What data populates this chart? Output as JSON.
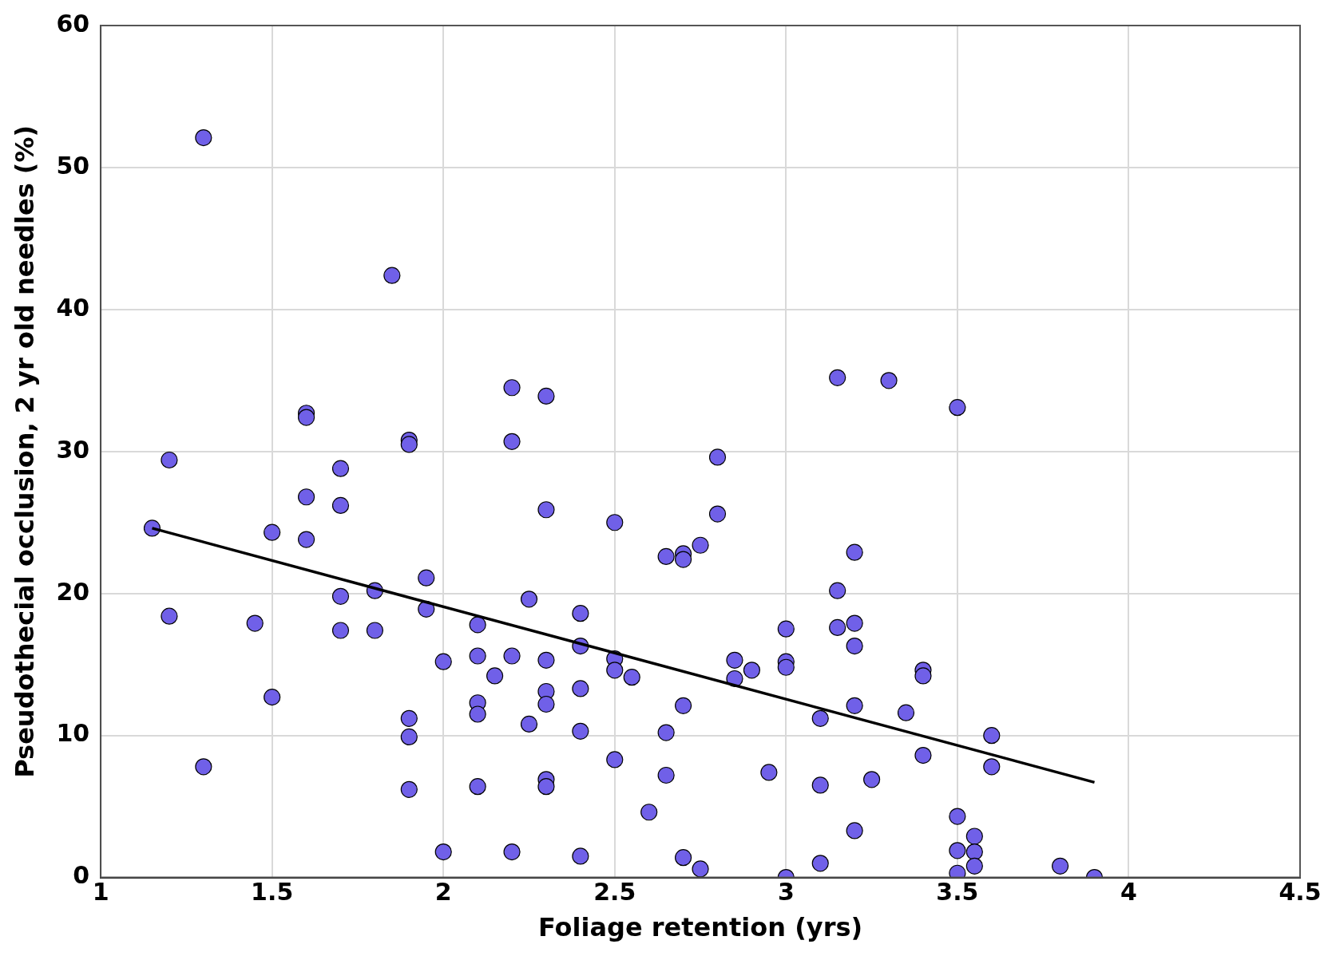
{
  "chart_data": {
    "type": "scatter",
    "xlabel": "Foliage retention (yrs)",
    "ylabel": "Pseudothecial occlusion, 2 yr old needles (%)",
    "xlim": [
      1,
      4.5
    ],
    "xticks": [
      1,
      1.5,
      2,
      2.5,
      3,
      3.5,
      4,
      4.5
    ],
    "ylim": [
      0,
      60
    ],
    "yticks": [
      0,
      10,
      20,
      30,
      40,
      50,
      60
    ],
    "grid": true,
    "legend": false,
    "marker": "circle",
    "series": [
      {
        "type": "scatter",
        "color": "#7060e8",
        "x": [
          1.3,
          1.15,
          1.2,
          1.2,
          1.3,
          1.45,
          1.5,
          1.5,
          1.6,
          1.6,
          1.6,
          1.6,
          1.7,
          1.7,
          1.7,
          1.7,
          1.8,
          1.8,
          1.85,
          1.9,
          1.9,
          1.9,
          1.9,
          1.9,
          1.95,
          1.95,
          2.0,
          2.0,
          2.1,
          2.1,
          2.1,
          2.1,
          2.1,
          2.15,
          2.2,
          2.2,
          2.2,
          2.2,
          2.25,
          2.25,
          2.3,
          2.3,
          2.3,
          2.3,
          2.3,
          2.3,
          2.3,
          2.4,
          2.4,
          2.4,
          2.4,
          2.4,
          2.5,
          2.5,
          2.5,
          2.5,
          2.55,
          2.6,
          2.65,
          2.65,
          2.65,
          2.7,
          2.7,
          2.7,
          2.7,
          2.75,
          2.75,
          2.8,
          2.8,
          2.85,
          2.85,
          2.9,
          2.95,
          3.0,
          3.0,
          3.0,
          3.0,
          3.1,
          3.1,
          3.1,
          3.15,
          3.15,
          3.15,
          3.2,
          3.2,
          3.2,
          3.2,
          3.2,
          3.25,
          3.3,
          3.35,
          3.4,
          3.4,
          3.4,
          3.5,
          3.5,
          3.5,
          3.5,
          3.55,
          3.55,
          3.55,
          3.6,
          3.6,
          3.8,
          3.9
        ],
        "values": [
          52.1,
          24.6,
          29.4,
          18.4,
          7.8,
          17.9,
          24.3,
          12.7,
          32.7,
          32.4,
          26.8,
          23.8,
          28.8,
          26.2,
          19.8,
          17.4,
          20.2,
          17.4,
          42.4,
          30.8,
          30.5,
          11.2,
          9.9,
          6.2,
          21.1,
          18.9,
          15.2,
          1.8,
          17.8,
          15.6,
          12.3,
          11.5,
          6.4,
          14.2,
          34.5,
          30.7,
          15.6,
          1.8,
          19.6,
          10.8,
          33.9,
          25.9,
          15.3,
          13.1,
          12.2,
          6.9,
          6.4,
          18.6,
          16.3,
          13.3,
          10.3,
          1.5,
          25.0,
          15.4,
          14.6,
          8.3,
          14.1,
          4.6,
          22.6,
          10.2,
          7.2,
          22.8,
          22.4,
          12.1,
          1.4,
          23.4,
          0.6,
          29.6,
          25.6,
          15.3,
          14.0,
          14.6,
          7.4,
          17.5,
          15.2,
          14.8,
          0,
          11.2,
          6.5,
          1.0,
          35.2,
          20.2,
          17.6,
          22.9,
          17.9,
          16.3,
          12.1,
          3.3,
          6.9,
          35.0,
          11.6,
          14.6,
          14.2,
          8.6,
          33.1,
          4.3,
          1.9,
          0.3,
          2.9,
          1.8,
          0.8,
          10.0,
          7.8,
          0.8,
          0
        ]
      },
      {
        "type": "line",
        "color": "#000000",
        "marker": "none",
        "x": [
          1.15,
          3.9
        ],
        "values": [
          24.6,
          6.7
        ]
      }
    ]
  }
}
